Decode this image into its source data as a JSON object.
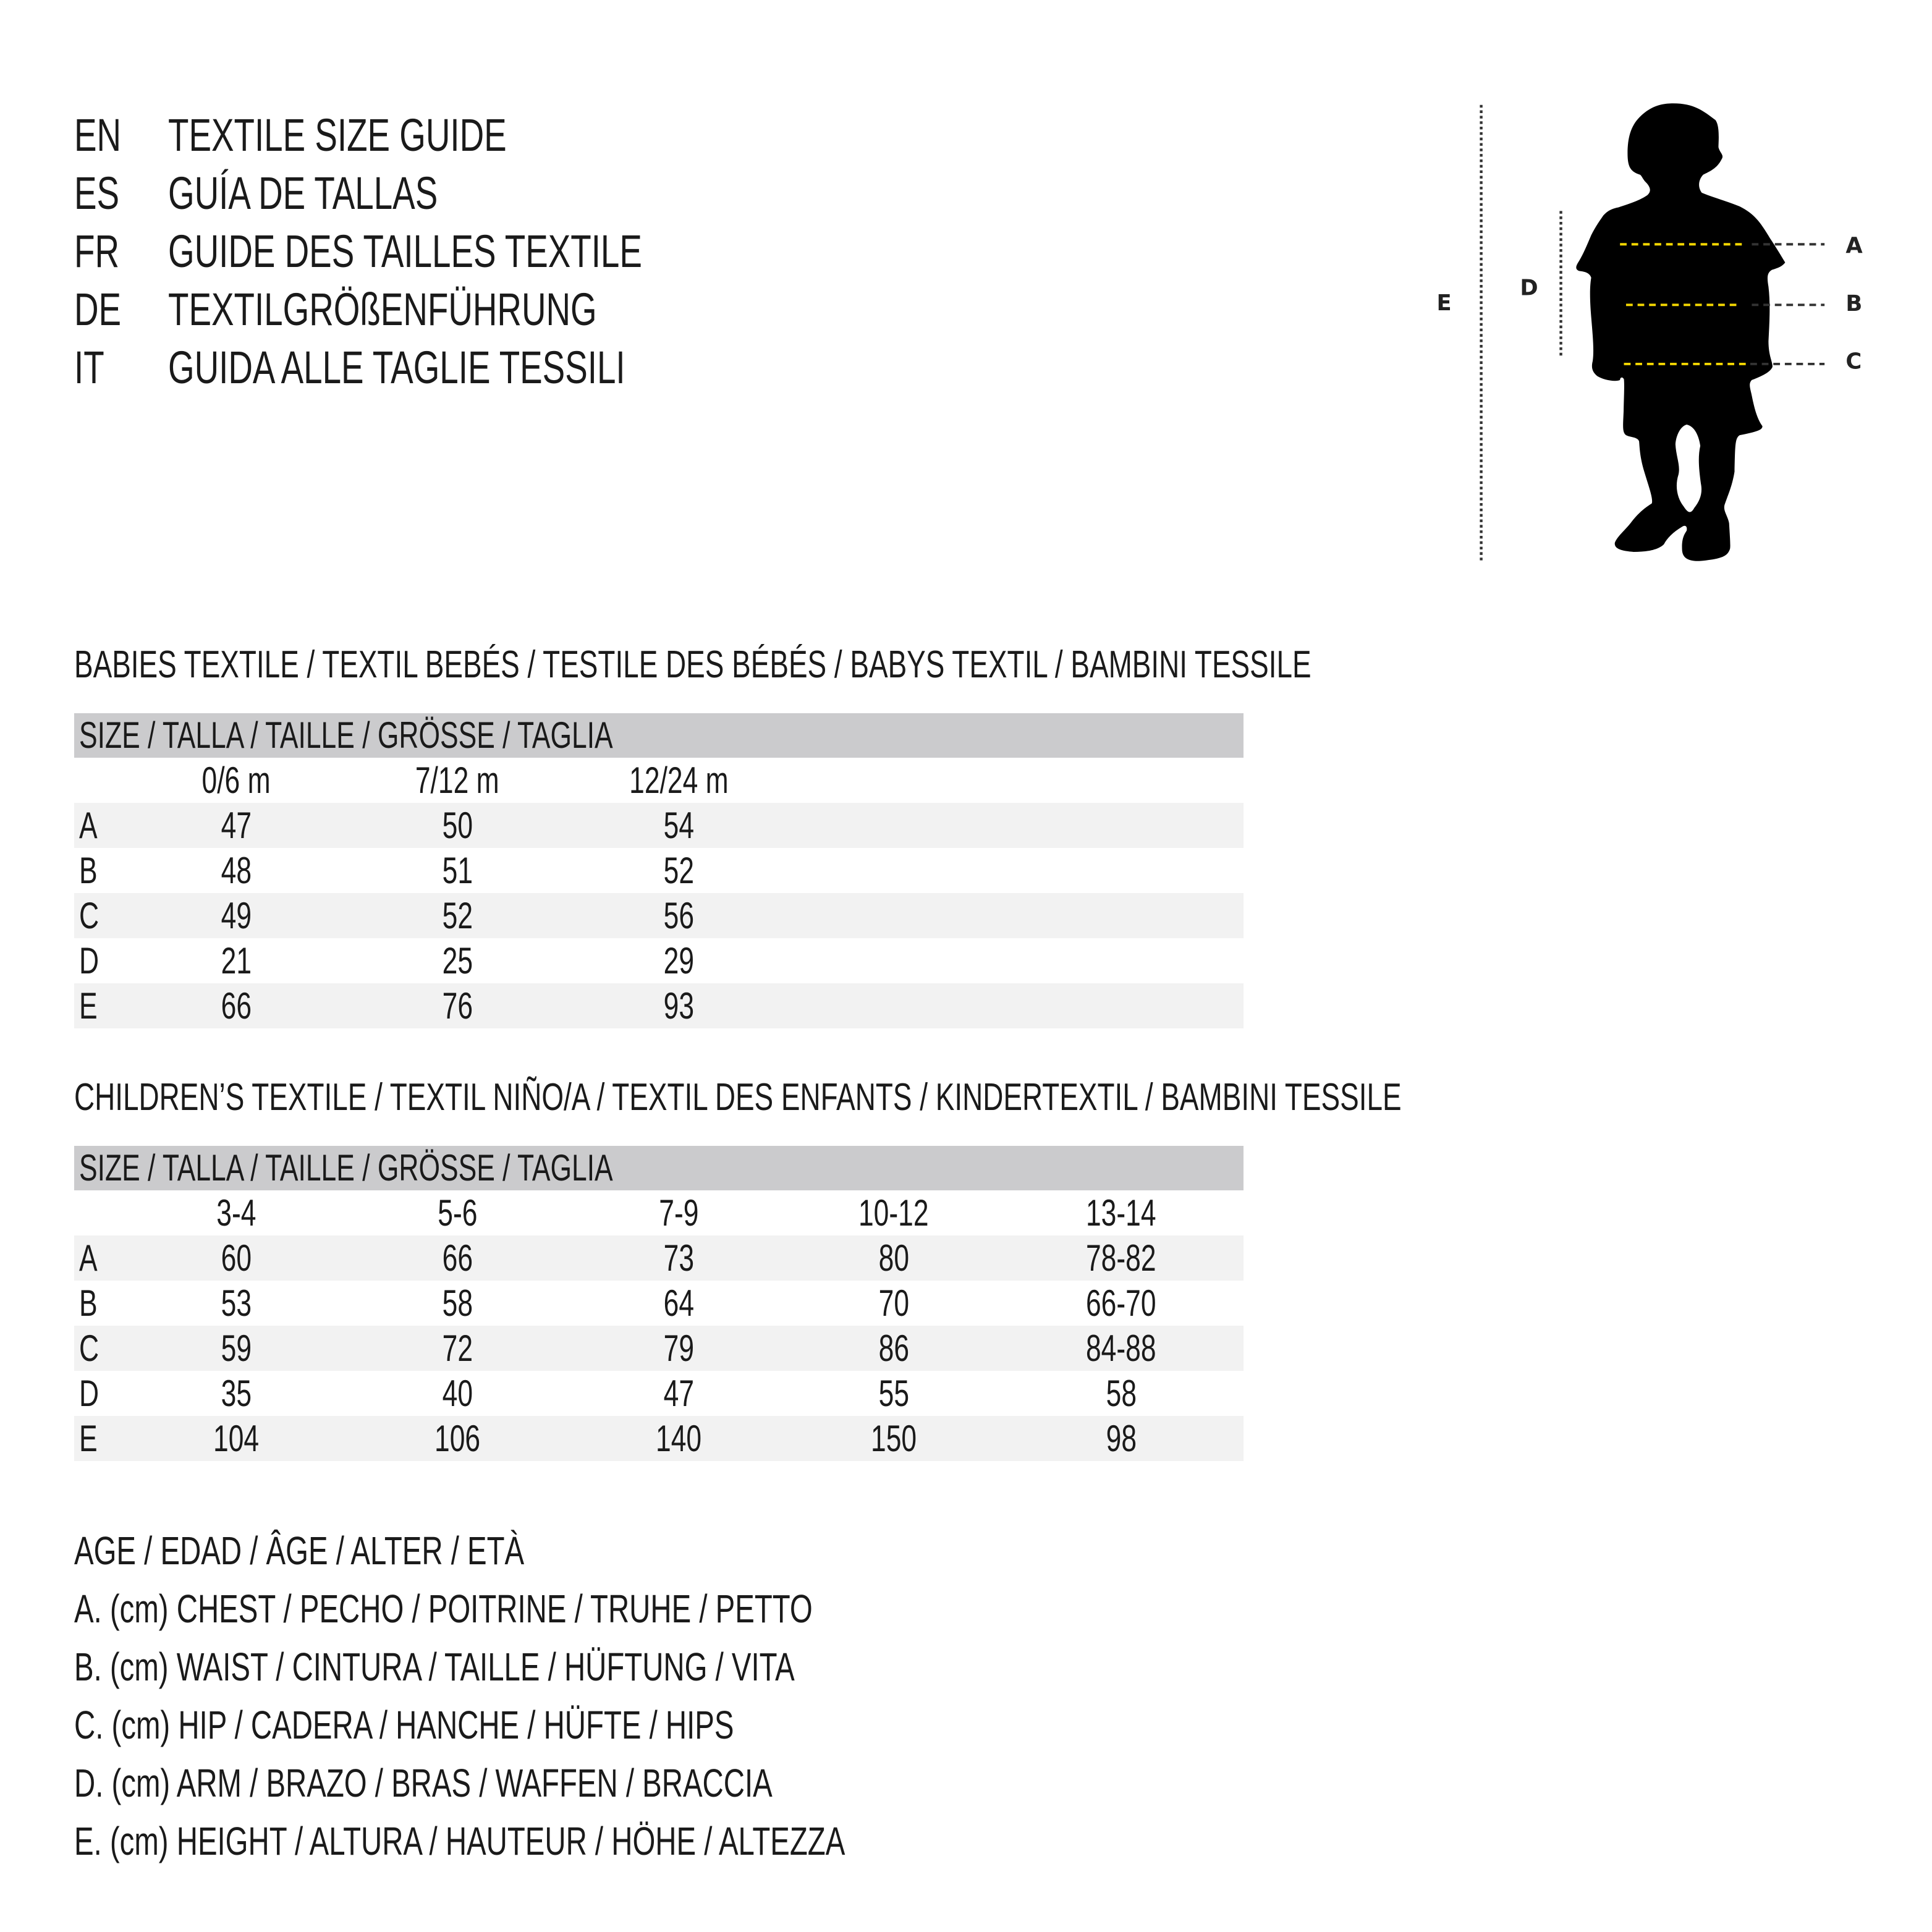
{
  "titles": [
    {
      "code": "EN",
      "text": "TEXTILE SIZE GUIDE"
    },
    {
      "code": "ES",
      "text": "GUÍA DE TALLAS"
    },
    {
      "code": "FR",
      "text": "GUIDE DES TAILLES TEXTILE"
    },
    {
      "code": "DE",
      "text": "TEXTILGRÖßENFÜHRUNG"
    },
    {
      "code": "IT",
      "text": "GUIDA ALLE TAGLIE TESSILI"
    }
  ],
  "babies": {
    "heading": "BABIES TEXTILE / TEXTIL BEBÉS / TESTILE DES BÉBÉS / BABYS TEXTIL / BAMBINI TESSILE",
    "size_header": "SIZE / TALLA / TAILLE / GRÖSSE / TAGLIA",
    "columns": [
      "0/6 m",
      "7/12 m",
      "12/24 m"
    ],
    "rows": [
      {
        "label": "A",
        "values": [
          "47",
          "50",
          "54"
        ]
      },
      {
        "label": "B",
        "values": [
          "48",
          "51",
          "52"
        ]
      },
      {
        "label": "C",
        "values": [
          "49",
          "52",
          "56"
        ]
      },
      {
        "label": "D",
        "values": [
          "21",
          "25",
          "29"
        ]
      },
      {
        "label": "E",
        "values": [
          "66",
          "76",
          "93"
        ]
      }
    ]
  },
  "children": {
    "heading": "CHILDREN’S TEXTILE / TEXTIL NIÑO/A / TEXTIL DES ENFANTS / KINDERTEXTIL / BAMBINI TESSILE",
    "size_header": "SIZE / TALLA / TAILLE / GRÖSSE / TAGLIA",
    "columns": [
      "3-4",
      "5-6",
      "7-9",
      "10-12",
      "13-14"
    ],
    "rows": [
      {
        "label": "A",
        "values": [
          "60",
          "66",
          "73",
          "80",
          "78-82"
        ]
      },
      {
        "label": "B",
        "values": [
          "53",
          "58",
          "64",
          "70",
          "66-70"
        ]
      },
      {
        "label": "C",
        "values": [
          "59",
          "72",
          "79",
          "86",
          "84-88"
        ]
      },
      {
        "label": "D",
        "values": [
          "35",
          "40",
          "47",
          "55",
          "58"
        ]
      },
      {
        "label": "E",
        "values": [
          "104",
          "106",
          "140",
          "150",
          "98"
        ]
      }
    ]
  },
  "legend": [
    "AGE / EDAD / ÂGE / ALTER / ETÀ",
    "A. (cm) CHEST / PECHO / POITRINE / TRUHE / PETTO",
    "B. (cm) WAIST / CINTURA / TAILLE / HÜFTUNG / VITA",
    "C. (cm) HIP / CADERA / HANCHE / HÜFTE / HIPS",
    "D. (cm) ARM / BRAZO / BRAS / WAFFEN / BRACCIA",
    "E. (cm) HEIGHT / ALTURA / HAUTEUR / HÖHE / ALTEZZA"
  ],
  "figure": {
    "labels": {
      "A": "A",
      "B": "B",
      "C": "C",
      "D": "D",
      "E": "E"
    },
    "colors": {
      "measure_line": "#f2d500",
      "guide_line": "#333333",
      "silhouette": "#000000"
    }
  }
}
